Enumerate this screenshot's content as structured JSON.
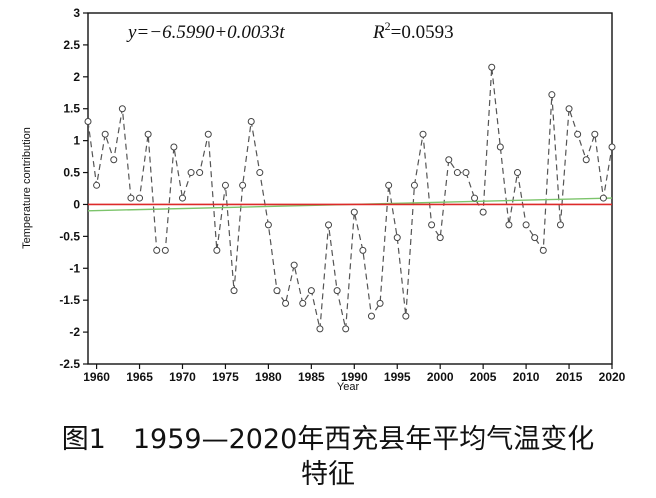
{
  "chart_data": {
    "type": "line",
    "xlabel": "Year",
    "ylabel": "Temperature contribution",
    "xlim": [
      1959,
      2020
    ],
    "ylim": [
      -2.5,
      3
    ],
    "x_ticks": [
      1960,
      1965,
      1970,
      1975,
      1980,
      1985,
      1990,
      1995,
      2000,
      2005,
      2010,
      2015,
      2020
    ],
    "y_ticks": [
      -2.5,
      -2,
      -1.5,
      -1,
      -0.5,
      0,
      0.5,
      1,
      1.5,
      2,
      2.5,
      3
    ],
    "y_tick_labels": [
      "-2.5",
      "-2",
      "-1.5",
      "-1",
      "-0.5",
      "0",
      "0.5",
      "1",
      "1.5",
      "2",
      "2.5",
      "3"
    ],
    "grid": false,
    "series": [
      {
        "style": "dashed-gray-with-circle-markers",
        "color": "#555555",
        "x": [
          1959,
          1960,
          1961,
          1962,
          1963,
          1964,
          1965,
          1966,
          1967,
          1968,
          1969,
          1970,
          1971,
          1972,
          1973,
          1974,
          1975,
          1976,
          1977,
          1978,
          1979,
          1980,
          1981,
          1982,
          1983,
          1984,
          1985,
          1986,
          1987,
          1988,
          1989,
          1990,
          1991,
          1992,
          1993,
          1994,
          1995,
          1996,
          1997,
          1998,
          1999,
          2000,
          2001,
          2002,
          2003,
          2004,
          2005,
          2006,
          2007,
          2008,
          2009,
          2010,
          2011,
          2012,
          2013,
          2014,
          2015,
          2016,
          2017,
          2018,
          2019,
          2020
        ],
        "values": [
          1.3,
          0.3,
          1.1,
          0.7,
          1.5,
          0.1,
          0.1,
          1.1,
          -0.72,
          -0.72,
          0.9,
          0.1,
          0.5,
          0.5,
          1.1,
          -0.72,
          0.3,
          -1.35,
          0.3,
          1.3,
          0.5,
          -0.32,
          -1.35,
          -1.55,
          -0.95,
          -1.55,
          -1.35,
          -1.95,
          -0.32,
          -1.35,
          -1.95,
          -0.12,
          -0.72,
          -1.75,
          -1.55,
          0.3,
          -0.52,
          -1.75,
          0.3,
          1.1,
          -0.32,
          -0.52,
          0.7,
          0.5,
          0.5,
          0.1,
          -0.12,
          2.15,
          0.9,
          -0.32,
          0.5,
          -0.32,
          -0.52,
          -0.72,
          1.72,
          -0.32,
          1.5,
          1.1,
          0.7,
          1.1,
          0.1,
          0.9
        ]
      },
      {
        "style": "trend-line",
        "color": "#7cc46b",
        "x": [
          1959,
          2020
        ],
        "values": [
          -0.1,
          0.1
        ]
      },
      {
        "style": "zero-line",
        "color": "#dd2a2a",
        "x": [
          1959,
          2020
        ],
        "values": [
          0,
          0
        ]
      }
    ],
    "annotation": {
      "equation": "y=−6.5990+0.0033t",
      "r2": "R2=0.0593"
    }
  },
  "caption": {
    "line1": "图1　1959—2020年西充县年平均气温变化",
    "line2": "特征"
  }
}
